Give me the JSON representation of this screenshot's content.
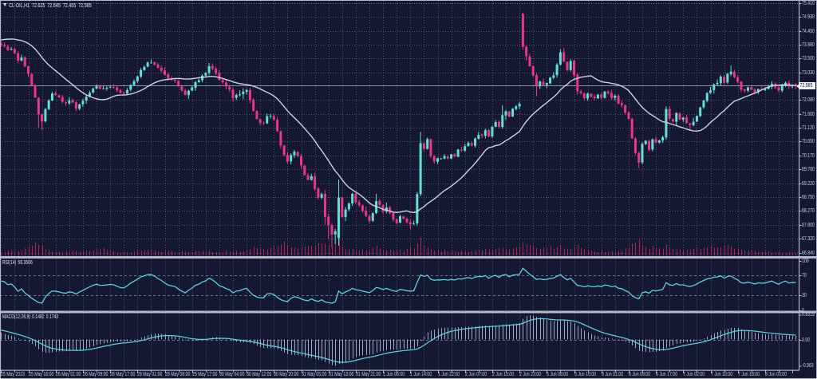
{
  "title": {
    "symbol": "CL-OIL,H1",
    "open": "72.625",
    "high": "72.645",
    "low": "72.455",
    "close": "72.585"
  },
  "price_axis": {
    "labels": [
      "75.410",
      "74.930",
      "74.450",
      "73.980",
      "73.500",
      "73.030",
      "72.080",
      "71.600",
      "71.120",
      "70.650",
      "70.170",
      "69.700",
      "69.220",
      "68.750",
      "68.270",
      "67.800",
      "67.320",
      "66.840"
    ],
    "current_price": "72.585"
  },
  "time_axis": {
    "labels": [
      "25 May 2023",
      "25 May 16:00",
      "26 May 01:00",
      "26 May 09:00",
      "26 May 17:00",
      "29 May 01:00",
      "29 May 09:00",
      "29 May 17:00",
      "30 May 04:00",
      "30 May 12:00",
      "30 May 20:00",
      "31 May 05:00",
      "31 May 13:00",
      "31 May 21:00",
      "1 Jun 06:00",
      "1 Jun 14:00",
      "1 Jun 22:00",
      "2 Jun 07:00",
      "2 Jun 15:00",
      "2 Jun 23:00",
      "5 Jun 08:00",
      "5 Jun 16:00",
      "6 Jun 01:00",
      "6 Jun 09:00",
      "6 Jun 17:00",
      "7 Jun 02:00",
      "7 Jun 10:00",
      "7 Jun 18:00",
      "8 Jun 03:00"
    ]
  },
  "rsi_pane": {
    "label": "RSI(14)",
    "value": "56.3566",
    "scale": [
      "100",
      "70",
      "30",
      "0"
    ],
    "levels": [
      70,
      30
    ]
  },
  "macd_pane": {
    "label": "MACD(12,26,9)",
    "value_main": "0.1482",
    "value_signal": "0.1743",
    "scale_max": "0.8319",
    "scale_zero": "0.00",
    "scale_min": "-0.963"
  },
  "colors": {
    "background": "#141831",
    "grid": "#8c93b2",
    "bull": "#5fe2d8",
    "bear": "#f0338a",
    "volume": "#b02458",
    "ma_line": "#cfd2dd",
    "indicator_line": "#59d3de",
    "macd_histogram": "#9fa8c2",
    "separator": "#b6bac8",
    "axis_text": "#c6d0ec",
    "price_line": "#8f93a8",
    "price_box_bg": "#f2f3f5",
    "price_box_text": "#111634",
    "title_text": "#e9ecf6"
  },
  "chart_data": {
    "type": "candlestick",
    "symbol": "CL-OIL",
    "timeframe": "H1",
    "ma_period": 21,
    "rsi_period": 14,
    "macd_params": [
      12,
      26,
      9
    ],
    "labels_every_n_candles": 8,
    "grid_every_n_candles": 4,
    "price_grid_step": 0.475,
    "seed_closes": [
      72.558,
      72.649,
      72.742,
      72.849,
      72.949,
      73.052,
      73.11,
      73.233,
      73.36,
      73.444,
      73.54,
      73.619,
      73.703,
      73.842,
      73.9,
      74.025,
      74.111,
      74.195,
      74.281,
      74.431,
      74.478,
      74.603,
      74.62,
      74.55,
      74.42,
      74.28,
      74.16,
      74.1,
      74.06,
      74.02
    ],
    "open": [
      74.02,
      73.951,
      73.912,
      73.799,
      73.825,
      73.681,
      73.432,
      73.539,
      73.235,
      72.972,
      72.585,
      72.153,
      71.586,
      71.347,
      71.766,
      72.06,
      72.306,
      72.24,
      72.176,
      72.002,
      71.961,
      72.075,
      72.0,
      71.778,
      71.933,
      72.057,
      72.191,
      72.333,
      72.469,
      72.553,
      72.469,
      72.462,
      72.505,
      72.522,
      72.507,
      72.419,
      72.332,
      72.3,
      72.43,
      72.588,
      72.723,
      72.881,
      73.105,
      73.221,
      73.357,
      73.366,
      73.296,
      73.182,
      73.09,
      72.961,
      72.824,
      72.773,
      72.726,
      72.548,
      72.411,
      72.244,
      72.403,
      72.493,
      72.691,
      72.759,
      72.92,
      73.01,
      73.243,
      73.154,
      72.989,
      72.761,
      72.676,
      72.534,
      72.43,
      72.154,
      72.242,
      72.275,
      72.363,
      72.417,
      72.09,
      71.694,
      71.416,
      71.298,
      71.276,
      71.514,
      71.532,
      71.403,
      71.005,
      70.512,
      70.188,
      69.972,
      70.177,
      70.292,
      70.157,
      69.822,
      69.5,
      69.339,
      69.456,
      69.038,
      68.725,
      68.859,
      68.074,
      67.777,
      67.463,
      67.35,
      68.737,
      68.063,
      68.328,
      68.531,
      68.863,
      68.574,
      68.46,
      68.28,
      68.097,
      67.933,
      68.2,
      68.618,
      68.47,
      68.252,
      68.399,
      68.2,
      67.985,
      67.87,
      68.081,
      68.006,
      67.878,
      67.82,
      67.845,
      68.85,
      70.592,
      70.399,
      70.733,
      70.144,
      69.961,
      70.066,
      70.069,
      70.139,
      70.069,
      70.214,
      70.131,
      70.37,
      70.338,
      70.494,
      70.594,
      70.509,
      70.746,
      70.892,
      70.849,
      71.053,
      70.828,
      71.159,
      71.327,
      71.153,
      71.547,
      71.683,
      71.509,
      71.77,
      71.86,
      75.03,
      73.903,
      73.571,
      73.241,
      72.928,
      72.549,
      72.703,
      72.598,
      72.648,
      72.838,
      72.931,
      73.295,
      73.718,
      73.387,
      73.105,
      73.425,
      72.945,
      72.369,
      72.299,
      72.129,
      72.289,
      72.194,
      72.133,
      72.262,
      72.152,
      72.365,
      72.321,
      72.154,
      72.228,
      71.971,
      71.902,
      71.65,
      71.429,
      70.754,
      70.263,
      69.936,
      70.563,
      70.673,
      70.38,
      70.736,
      70.618,
      70.688,
      70.791,
      71.771,
      71.418,
      71.333,
      71.624,
      71.405,
      71.482,
      71.278,
      71.214,
      71.337,
      71.525,
      71.825,
      72.049,
      72.321,
      72.418,
      72.622,
      72.655,
      72.873,
      72.683,
      72.965,
      73.045,
      72.862,
      72.709,
      72.442,
      72.394,
      72.52,
      72.439,
      72.343,
      72.46,
      72.414,
      72.462,
      72.53,
      72.632,
      72.505,
      72.402,
      72.576,
      72.674,
      72.543,
      72.625
    ],
    "high": [
      74.1,
      74.05,
      73.976,
      73.896,
      73.866,
      73.761,
      73.635,
      73.591,
      73.251,
      72.993,
      72.618,
      72.178,
      71.605,
      71.802,
      72.103,
      72.365,
      72.38,
      72.258,
      72.244,
      72.049,
      72.171,
      72.124,
      72.046,
      71.951,
      72.115,
      72.249,
      72.387,
      72.51,
      72.616,
      72.608,
      72.566,
      72.547,
      72.557,
      72.626,
      72.583,
      72.466,
      72.373,
      72.489,
      72.618,
      72.781,
      72.907,
      73.175,
      73.265,
      73.401,
      73.47,
      73.403,
      73.355,
      73.265,
      73.205,
      73.023,
      72.897,
      72.842,
      72.761,
      72.598,
      72.464,
      72.432,
      72.56,
      72.738,
      72.818,
      72.958,
      73.035,
      73.35,
      73.333,
      73.223,
      73.107,
      72.84,
      72.761,
      72.586,
      72.502,
      72.301,
      72.409,
      72.48,
      72.464,
      72.499,
      72.146,
      71.732,
      71.448,
      71.344,
      71.61,
      71.607,
      71.579,
      71.499,
      71.034,
      70.544,
      70.281,
      70.255,
      70.365,
      70.328,
      70.219,
      69.863,
      69.564,
      69.547,
      69.565,
      69.093,
      68.906,
      68.982,
      68.165,
      67.864,
      67.654,
      69.35,
      68.753,
      68.407,
      68.565,
      68.889,
      68.945,
      68.66,
      68.495,
      68.431,
      68.144,
      68.225,
      68.86,
      68.682,
      68.507,
      68.558,
      68.444,
      68.225,
      68.018,
      68.143,
      68.106,
      68.036,
      67.975,
      67.937,
      68.921,
      70.98,
      70.654,
      70.789,
      70.756,
      70.193,
      70.101,
      70.095,
      70.223,
      70.195,
      70.229,
      70.25,
      70.403,
      70.475,
      70.573,
      70.656,
      70.657,
      70.795,
      70.977,
      70.925,
      71.1,
      71.071,
      71.188,
      71.393,
      71.392,
      71.89,
      71.732,
      71.713,
      71.797,
      71.901,
      72.013,
      75.07,
      73.948,
      73.659,
      73.268,
      72.993,
      72.747,
      72.82,
      72.674,
      72.879,
      73.037,
      73.354,
      73.82,
      73.856,
      73.403,
      73.475,
      73.469,
      72.997,
      72.441,
      72.34,
      72.332,
      72.317,
      72.275,
      72.277,
      72.323,
      72.39,
      72.408,
      72.426,
      72.265,
      72.284,
      72.062,
      71.92,
      71.687,
      71.473,
      70.81,
      70.307,
      70.618,
      70.697,
      70.717,
      70.764,
      70.814,
      70.711,
      70.855,
      71.86,
      71.863,
      71.456,
      71.653,
      71.657,
      71.494,
      71.562,
      71.293,
      71.47,
      71.55,
      71.852,
      72.08,
      72.345,
      72.528,
      72.643,
      72.785,
      72.928,
      72.931,
      73.006,
      73.26,
      73.118,
      72.922,
      72.729,
      72.461,
      72.536,
      72.566,
      72.486,
      72.469,
      72.54,
      72.513,
      72.595,
      72.725,
      72.686,
      72.567,
      72.633,
      72.718,
      72.755,
      72.623,
      72.645
    ],
    "low": [
      73.896,
      73.877,
      73.76,
      73.782,
      73.658,
      73.333,
      73.394,
      73.21,
      72.874,
      72.531,
      72.143,
      71.12,
      71.05,
      71.309,
      71.733,
      72.039,
      72.225,
      72.15,
      71.954,
      71.876,
      71.91,
      71.97,
      71.7,
      71.726,
      71.851,
      71.953,
      72.164,
      72.295,
      72.441,
      72.437,
      72.443,
      72.394,
      72.484,
      72.458,
      72.338,
      72.296,
      72.263,
      72.283,
      72.372,
      72.568,
      72.655,
      72.828,
      73.074,
      73.197,
      73.332,
      73.254,
      73.166,
      73.02,
      72.927,
      72.742,
      72.722,
      72.664,
      72.527,
      72.368,
      72.234,
      72.121,
      72.381,
      72.392,
      72.666,
      72.684,
      72.852,
      72.938,
      73.093,
      72.931,
      72.744,
      72.622,
      72.435,
      72.358,
      72.048,
      72.082,
      72.194,
      72.105,
      72.272,
      71.958,
      71.674,
      71.404,
      71.217,
      71.22,
      71.25,
      71.444,
      71.375,
      70.983,
      70.408,
      70.144,
      69.9,
      69.872,
      70.09,
      70.106,
      69.724,
      69.477,
      69.315,
      69.304,
      68.969,
      68.666,
      68.667,
      67.8,
      67.3,
      67.03,
      67.12,
      67.08,
      68.032,
      67.923,
      68.264,
      68.446,
      68.511,
      68.401,
      68.216,
      68.059,
      67.859,
      67.89,
      68.164,
      68.436,
      68.178,
      68.187,
      68.163,
      67.904,
      67.804,
      67.848,
      67.976,
      67.834,
      67.64,
      67.796,
      67.774,
      68.78,
      70.321,
      70.378,
      70.083,
      69.89,
      69.883,
      70.031,
      70.041,
      70.036,
      70.046,
      70.111,
      70.116,
      70.296,
      70.298,
      70.477,
      70.485,
      70.442,
      70.73,
      70.773,
      70.755,
      70.801,
      70.774,
      71.141,
      71.114,
      71.091,
      71.398,
      71.486,
      71.492,
      71.719,
      71.766,
      73.8,
      73.43,
      73.219,
      72.883,
      72.21,
      72.461,
      72.568,
      72.481,
      72.625,
      72.794,
      72.843,
      73.266,
      73.374,
      73.053,
      73.053,
      72.84,
      72.25,
      72.262,
      72.082,
      72.053,
      72.166,
      72.068,
      72.116,
      72.101,
      72.129,
      72.263,
      72.081,
      72.062,
      71.927,
      71.815,
      71.59,
      71.406,
      70.74,
      70.191,
      69.74,
      69.873,
      70.532,
      70.312,
      70.315,
      70.585,
      70.582,
      70.604,
      70.713,
      71.379,
      71.308,
      71.209,
      71.376,
      71.323,
      71.264,
      71.05,
      71.17,
      71.318,
      71.49,
      71.771,
      71.991,
      72.282,
      72.295,
      72.57,
      72.562,
      72.622,
      72.629,
      72.899,
      72.823,
      72.642,
      72.344,
      72.323,
      72.345,
      72.407,
      72.32,
      72.28,
      72.39,
      72.379,
      72.435,
      72.447,
      72.451,
      72.357,
      72.34,
      72.524,
      72.469,
      72.48,
      72.455
    ],
    "close": [
      73.95,
      73.917,
      73.792,
      73.828,
      73.681,
      73.425,
      73.534,
      73.227,
      72.974,
      72.582,
      72.165,
      71.581,
      71.338,
      71.766,
      72.062,
      72.301,
      72.249,
      72.166,
      72.014,
      71.966,
      72.063,
      71.992,
      71.784,
      71.926,
      72.048,
      72.192,
      72.325,
      72.469,
      72.558,
      72.463,
      72.47,
      72.494,
      72.531,
      72.511,
      72.41,
      72.323,
      72.298,
      72.419,
      72.592,
      72.724,
      72.887,
      73.11,
      73.211,
      73.361,
      73.36,
      73.29,
      73.182,
      73.082,
      72.95,
      72.821,
      72.774,
      72.732,
      72.56,
      72.405,
      72.251,
      72.395,
      72.504,
      72.686,
      72.757,
      72.912,
      73.007,
      73.239,
      73.144,
      72.983,
      72.762,
      72.683,
      72.545,
      72.441,
      72.148,
      72.25,
      72.272,
      72.366,
      72.415,
      72.08,
      71.697,
      71.428,
      71.294,
      71.282,
      71.523,
      71.537,
      71.401,
      71.009,
      70.513,
      70.189,
      69.964,
      70.187,
      70.302,
      70.159,
      69.83,
      69.509,
      69.336,
      69.464,
      69.026,
      68.724,
      68.848,
      68.068,
      67.782,
      67.462,
      67.578,
      68.73,
      68.06,
      68.317,
      68.529,
      68.856,
      68.568,
      68.468,
      68.275,
      68.101,
      67.931,
      68.194,
      68.608,
      68.478,
      68.246,
      68.389,
      68.189,
      67.974,
      67.862,
      68.087,
      68.007,
      67.884,
      67.81,
      67.838,
      68.85,
      70.6,
      70.4,
      70.738,
      70.155,
      69.971,
      70.077,
      70.072,
      70.15,
      70.07,
      70.214,
      70.143,
      70.377,
      70.343,
      70.494,
      70.605,
      70.518,
      70.755,
      70.883,
      70.861,
      71.043,
      70.822,
      71.16,
      71.322,
      71.161,
      71.557,
      71.684,
      71.501,
      71.78,
      71.865,
      71.95,
      73.9,
      73.579,
      73.238,
      72.919,
      72.542,
      72.713,
      72.599,
      72.659,
      72.841,
      72.924,
      73.295,
      73.714,
      73.391,
      73.107,
      73.413,
      72.934,
      72.372,
      72.311,
      72.137,
      72.299,
      72.184,
      72.142,
      72.262,
      72.153,
      72.367,
      72.31,
      72.149,
      72.225,
      71.96,
      71.9,
      71.641,
      71.424,
      70.76,
      70.26,
      69.933,
      70.573,
      70.679,
      70.37,
      70.725,
      70.617,
      70.689,
      70.799,
      71.768,
      71.429,
      71.339,
      71.632,
      71.411,
      71.475,
      71.287,
      71.221,
      71.332,
      71.531,
      71.819,
      72.058,
      72.32,
      72.41,
      72.615,
      72.665,
      72.881,
      72.676,
      72.977,
      73.052,
      72.858,
      72.706,
      72.43,
      72.396,
      72.511,
      72.428,
      72.339,
      72.454,
      72.42,
      72.454,
      72.538,
      72.628,
      72.502,
      72.404,
      72.575,
      72.672,
      72.541,
      72.582,
      72.585
    ],
    "tick_volume": [
      227,
      233,
      313,
      337,
      262,
      288,
      286,
      454,
      566,
      603,
      810,
      676,
      605,
      388,
      356,
      257,
      241,
      236,
      210,
      281,
      274,
      333,
      306,
      241,
      278,
      307,
      313,
      314,
      440,
      397,
      469,
      338,
      292,
      289,
      208,
      167,
      245,
      223,
      189,
      249,
      310,
      300,
      346,
      358,
      347,
      328,
      262,
      220,
      285,
      316,
      303,
      228,
      222,
      267,
      237,
      220,
      191,
      293,
      274,
      298,
      245,
      300,
      194,
      232,
      188,
      238,
      291,
      268,
      246,
      303,
      241,
      281,
      319,
      411,
      573,
      471,
      455,
      388,
      382,
      480,
      585,
      596,
      664,
      899,
      673,
      533,
      509,
      436,
      534,
      554,
      607,
      631,
      597,
      777,
      748,
      757,
      678,
      554,
      635,
      1269,
      549,
      393,
      404,
      427,
      358,
      323,
      376,
      311,
      393,
      497,
      612,
      452,
      341,
      331,
      354,
      320,
      313,
      351,
      327,
      417,
      557,
      442,
      758,
      1124,
      661,
      513,
      371,
      314,
      315,
      265,
      378,
      267,
      328,
      252,
      226,
      303,
      287,
      245,
      279,
      333,
      336,
      332,
      424,
      387,
      309,
      422,
      483,
      496,
      399,
      397,
      461,
      543,
      552,
      851,
      704,
      647,
      599,
      464,
      423,
      492,
      523,
      613,
      421,
      522,
      641,
      426,
      439,
      435,
      541,
      663,
      473,
      401,
      331,
      305,
      263,
      220,
      327,
      231,
      240,
      271,
      248,
      290,
      308,
      455,
      513,
      748,
      799,
      1045,
      647,
      536,
      424,
      609,
      474,
      452,
      426,
      671,
      461,
      443,
      388,
      385,
      335,
      352,
      350,
      427,
      473,
      415,
      494,
      524,
      566,
      505,
      507,
      518,
      634,
      637,
      552,
      434,
      425,
      366,
      327,
      338,
      319,
      309,
      249,
      229,
      263,
      265,
      184,
      244,
      240,
      147,
      141,
      247,
      214,
      140
    ]
  }
}
